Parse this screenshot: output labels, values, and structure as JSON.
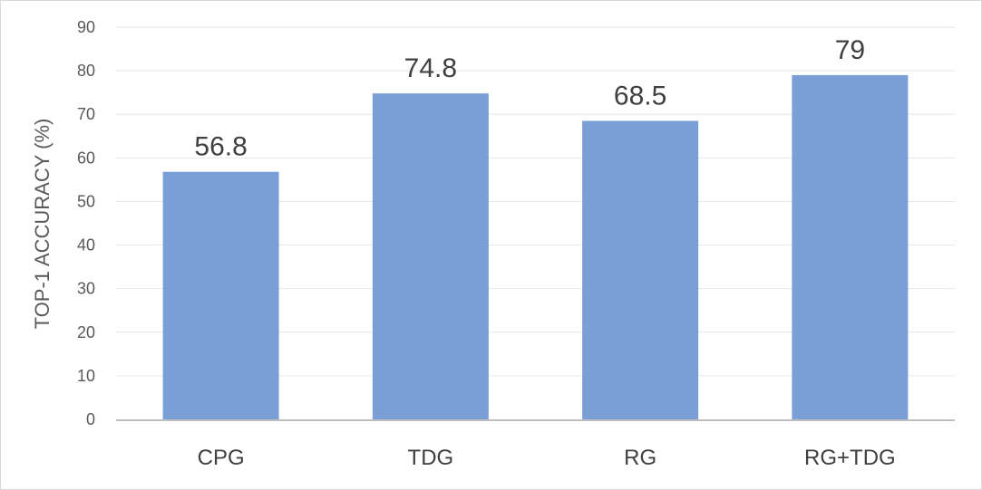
{
  "chart_data": {
    "type": "bar",
    "categories": [
      "CPG",
      "TDG",
      "RG",
      "RG+TDG"
    ],
    "values": [
      56.8,
      74.8,
      68.5,
      79
    ],
    "data_labels": [
      "56.8",
      "74.8",
      "68.5",
      "79"
    ],
    "title": "",
    "xlabel": "",
    "ylabel": "TOP-1 ACCURACY (%)",
    "ylim": [
      0,
      90
    ],
    "yticks": [
      0,
      10,
      20,
      30,
      40,
      50,
      60,
      70,
      80,
      90
    ],
    "grid": true,
    "legend": "none",
    "colors": {
      "bar": "#7a9fd6",
      "grid": "#e6e6e6",
      "axis": "#bfbfbf"
    }
  }
}
